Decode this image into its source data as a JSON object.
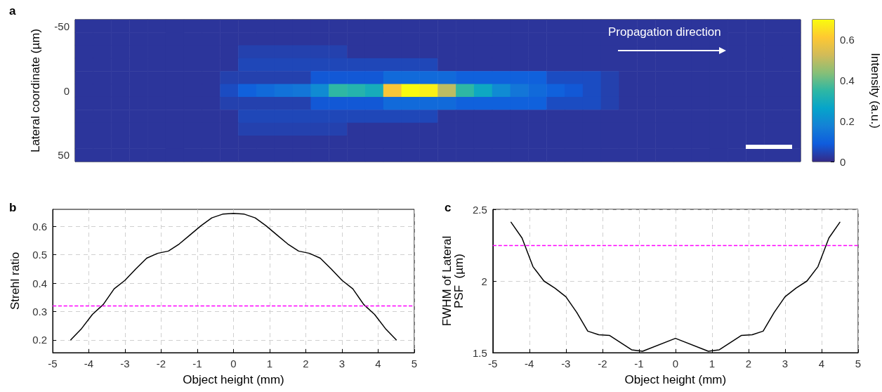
{
  "chart_data": [
    {
      "type": "heatmap",
      "title": "a",
      "ylabel": "Lateral coordinate (µm)",
      "clabel": "Intensity (a.u.)",
      "annotations": [
        "Propagation direction"
      ],
      "tick_labels": "y",
      "categories": [
        null,
        null,
        null,
        null,
        null,
        null,
        null,
        null,
        null,
        null,
        null,
        null,
        null,
        null,
        null,
        null,
        null,
        null,
        null,
        null,
        null,
        null,
        null,
        null,
        null,
        null,
        null,
        null,
        null,
        null,
        null,
        null,
        null,
        null,
        null,
        null,
        null,
        null,
        null,
        null
      ],
      "y_categories": [
        "-50",
        null,
        null,
        null,
        null,
        "0",
        null,
        null,
        null,
        null,
        "50"
      ],
      "clim": [
        0,
        0.7
      ],
      "cticks": [
        0,
        0.2,
        0.4,
        0.6
      ],
      "cells": [
        [
          0.02,
          0.02,
          0.02,
          0.02,
          0.02,
          0.02,
          0.02,
          0.02,
          0.02,
          0.02,
          0.02,
          0.02,
          0.02,
          0.02,
          0.02,
          0.02,
          0.02,
          0.02,
          0.02,
          0.02,
          0.02,
          0.02,
          0.02,
          0.02,
          0.02,
          0.02,
          0.02,
          0.02,
          0.02,
          0.02,
          0.02,
          0.02,
          0.02,
          0.02,
          0.02,
          0.02,
          0.02,
          0.02,
          0.02,
          0.02
        ],
        [
          0.02,
          0.02,
          0.02,
          0.02,
          0.02,
          0.02,
          0.02,
          0.02,
          0.02,
          0.02,
          0.02,
          0.02,
          0.02,
          0.02,
          0.02,
          0.02,
          0.02,
          0.02,
          0.02,
          0.02,
          0.02,
          0.02,
          0.02,
          0.02,
          0.02,
          0.02,
          0.02,
          0.02,
          0.02,
          0.02,
          0.02,
          0.02,
          0.02,
          0.02,
          0.02,
          0.02,
          0.02,
          0.02,
          0.02,
          0.02
        ],
        [
          0.02,
          0.02,
          0.02,
          0.02,
          0.02,
          0.02,
          0.02,
          0.02,
          0.02,
          0.04,
          0.04,
          0.04,
          0.04,
          0.04,
          0.04,
          0.02,
          0.02,
          0.02,
          0.02,
          0.02,
          0.02,
          0.02,
          0.02,
          0.02,
          0.02,
          0.02,
          0.02,
          0.02,
          0.02,
          0.02,
          0.02,
          0.02,
          0.02,
          0.02,
          0.02,
          0.02,
          0.02,
          0.02,
          0.02,
          0.02
        ],
        [
          0.02,
          0.02,
          0.02,
          0.02,
          0.02,
          0.02,
          0.02,
          0.02,
          0.02,
          0.05,
          0.05,
          0.05,
          0.05,
          0.05,
          0.05,
          0.05,
          0.05,
          0.05,
          0.05,
          0.05,
          0.02,
          0.02,
          0.02,
          0.02,
          0.02,
          0.02,
          0.02,
          0.02,
          0.02,
          0.02,
          0.02,
          0.02,
          0.02,
          0.02,
          0.02,
          0.02,
          0.02,
          0.02,
          0.02,
          0.02
        ],
        [
          0.02,
          0.02,
          0.02,
          0.02,
          0.02,
          0.02,
          0.02,
          0.02,
          0.04,
          0.04,
          0.04,
          0.04,
          0.04,
          0.08,
          0.08,
          0.08,
          0.08,
          0.12,
          0.12,
          0.12,
          0.12,
          0.1,
          0.1,
          0.1,
          0.1,
          0.1,
          0.06,
          0.06,
          0.06,
          0.04,
          0.02,
          0.02,
          0.02,
          0.02,
          0.02,
          0.02,
          0.02,
          0.02,
          0.02,
          0.02
        ],
        [
          0.02,
          0.02,
          0.02,
          0.02,
          0.02,
          0.02,
          0.02,
          0.02,
          0.06,
          0.1,
          0.12,
          0.14,
          0.15,
          0.2,
          0.35,
          0.33,
          0.3,
          0.6,
          0.7,
          0.68,
          0.5,
          0.35,
          0.28,
          0.2,
          0.15,
          0.12,
          0.1,
          0.08,
          0.06,
          0.04,
          0.02,
          0.02,
          0.02,
          0.02,
          0.02,
          0.02,
          0.02,
          0.02,
          0.02,
          0.02
        ],
        [
          0.02,
          0.02,
          0.02,
          0.02,
          0.02,
          0.02,
          0.02,
          0.02,
          0.04,
          0.04,
          0.04,
          0.04,
          0.04,
          0.08,
          0.08,
          0.08,
          0.08,
          0.12,
          0.12,
          0.12,
          0.12,
          0.1,
          0.1,
          0.1,
          0.1,
          0.1,
          0.06,
          0.06,
          0.06,
          0.04,
          0.02,
          0.02,
          0.02,
          0.02,
          0.02,
          0.02,
          0.02,
          0.02,
          0.02,
          0.02
        ],
        [
          0.02,
          0.02,
          0.02,
          0.02,
          0.02,
          0.02,
          0.02,
          0.02,
          0.02,
          0.05,
          0.05,
          0.05,
          0.05,
          0.05,
          0.05,
          0.05,
          0.05,
          0.05,
          0.05,
          0.05,
          0.02,
          0.02,
          0.02,
          0.02,
          0.02,
          0.02,
          0.02,
          0.02,
          0.02,
          0.02,
          0.02,
          0.02,
          0.02,
          0.02,
          0.02,
          0.02,
          0.02,
          0.02,
          0.02,
          0.02
        ],
        [
          0.02,
          0.02,
          0.02,
          0.02,
          0.02,
          0.02,
          0.02,
          0.02,
          0.02,
          0.04,
          0.04,
          0.04,
          0.04,
          0.04,
          0.04,
          0.02,
          0.02,
          0.02,
          0.02,
          0.02,
          0.02,
          0.02,
          0.02,
          0.02,
          0.02,
          0.02,
          0.02,
          0.02,
          0.02,
          0.02,
          0.02,
          0.02,
          0.02,
          0.02,
          0.02,
          0.02,
          0.02,
          0.02,
          0.02,
          0.02
        ],
        [
          0.02,
          0.02,
          0.02,
          0.02,
          0.02,
          0.02,
          0.02,
          0.02,
          0.02,
          0.02,
          0.02,
          0.02,
          0.02,
          0.02,
          0.02,
          0.02,
          0.02,
          0.02,
          0.02,
          0.02,
          0.02,
          0.02,
          0.02,
          0.02,
          0.02,
          0.02,
          0.02,
          0.02,
          0.02,
          0.02,
          0.02,
          0.02,
          0.02,
          0.02,
          0.02,
          0.02,
          0.02,
          0.02,
          0.02,
          0.02
        ],
        [
          0.02,
          0.02,
          0.02,
          0.02,
          0.02,
          0.02,
          0.02,
          0.02,
          0.02,
          0.02,
          0.02,
          0.02,
          0.02,
          0.02,
          0.02,
          0.02,
          0.02,
          0.02,
          0.02,
          0.02,
          0.02,
          0.02,
          0.02,
          0.02,
          0.02,
          0.02,
          0.02,
          0.02,
          0.02,
          0.02,
          0.02,
          0.02,
          0.02,
          0.02,
          0.02,
          0.02,
          0.02,
          0.02,
          0.02,
          0.02
        ]
      ]
    },
    {
      "type": "line",
      "title": "b",
      "xlabel": "Object height (mm)",
      "ylabel": "Strehl ratio",
      "xlim": [
        -5,
        5
      ],
      "xticks": [
        -5,
        -4,
        -3,
        -2,
        -1,
        0,
        1,
        2,
        3,
        4,
        5
      ],
      "ylim": [
        0.155,
        0.66
      ],
      "yticks": [
        0.2,
        0.3,
        0.4,
        0.5,
        0.6
      ],
      "grid": true,
      "marker": "none",
      "line_style": "solid",
      "ref_lines": [
        {
          "axis": "y",
          "value": 0.324,
          "color": "#ff00ff",
          "line_style": "dashed"
        }
      ],
      "series": [
        {
          "color": "#000000",
          "x": [
            -4.5,
            -4.2,
            -3.9,
            -3.6,
            -3.3,
            -3.0,
            -2.7,
            -2.4,
            -2.1,
            -1.8,
            -1.5,
            -1.2,
            -0.9,
            -0.6,
            -0.3,
            0,
            0.3,
            0.6,
            0.9,
            1.2,
            1.5,
            1.8,
            2.1,
            2.4,
            2.7,
            3.0,
            3.3,
            3.6,
            3.9,
            4.2,
            4.5
          ],
          "values": [
            0.2,
            0.24,
            0.29,
            0.325,
            0.38,
            0.41,
            0.45,
            0.488,
            0.505,
            0.513,
            0.538,
            0.57,
            0.602,
            0.63,
            0.643,
            0.646,
            0.643,
            0.63,
            0.602,
            0.57,
            0.538,
            0.513,
            0.505,
            0.488,
            0.45,
            0.41,
            0.38,
            0.325,
            0.29,
            0.24,
            0.2
          ]
        }
      ]
    },
    {
      "type": "line",
      "title": "c",
      "xlabel": "Object height (mm)",
      "ylabel": "FWHM of Lateral\nPSF  (µm)",
      "xlim": [
        -5,
        5
      ],
      "xticks": [
        -5,
        -4,
        -3,
        -2,
        -1,
        0,
        1,
        2,
        3,
        4,
        5
      ],
      "ylim": [
        1.5,
        2.5
      ],
      "yticks": [
        1.5,
        2,
        2.5
      ],
      "grid": true,
      "marker": "none",
      "line_style": "solid",
      "ref_lines": [
        {
          "axis": "y",
          "value": 2.25,
          "color": "#ff00ff",
          "line_style": "dashed"
        }
      ],
      "series": [
        {
          "color": "#000000",
          "x": [
            -4.5,
            -4.2,
            -3.9,
            -3.6,
            -3.3,
            -3.0,
            -2.7,
            -2.4,
            -2.1,
            -1.8,
            -1.2,
            -0.9,
            0,
            0.9,
            1.2,
            1.8,
            2.1,
            2.4,
            2.7,
            3.0,
            3.3,
            3.6,
            3.9,
            4.2,
            4.5
          ],
          "values": [
            2.41,
            2.3,
            2.1,
            2.0,
            1.95,
            1.89,
            1.78,
            1.65,
            1.625,
            1.62,
            1.52,
            1.51,
            1.6,
            1.51,
            1.52,
            1.62,
            1.625,
            1.65,
            1.78,
            1.89,
            1.95,
            2.0,
            2.1,
            2.3,
            2.41
          ]
        }
      ]
    }
  ]
}
